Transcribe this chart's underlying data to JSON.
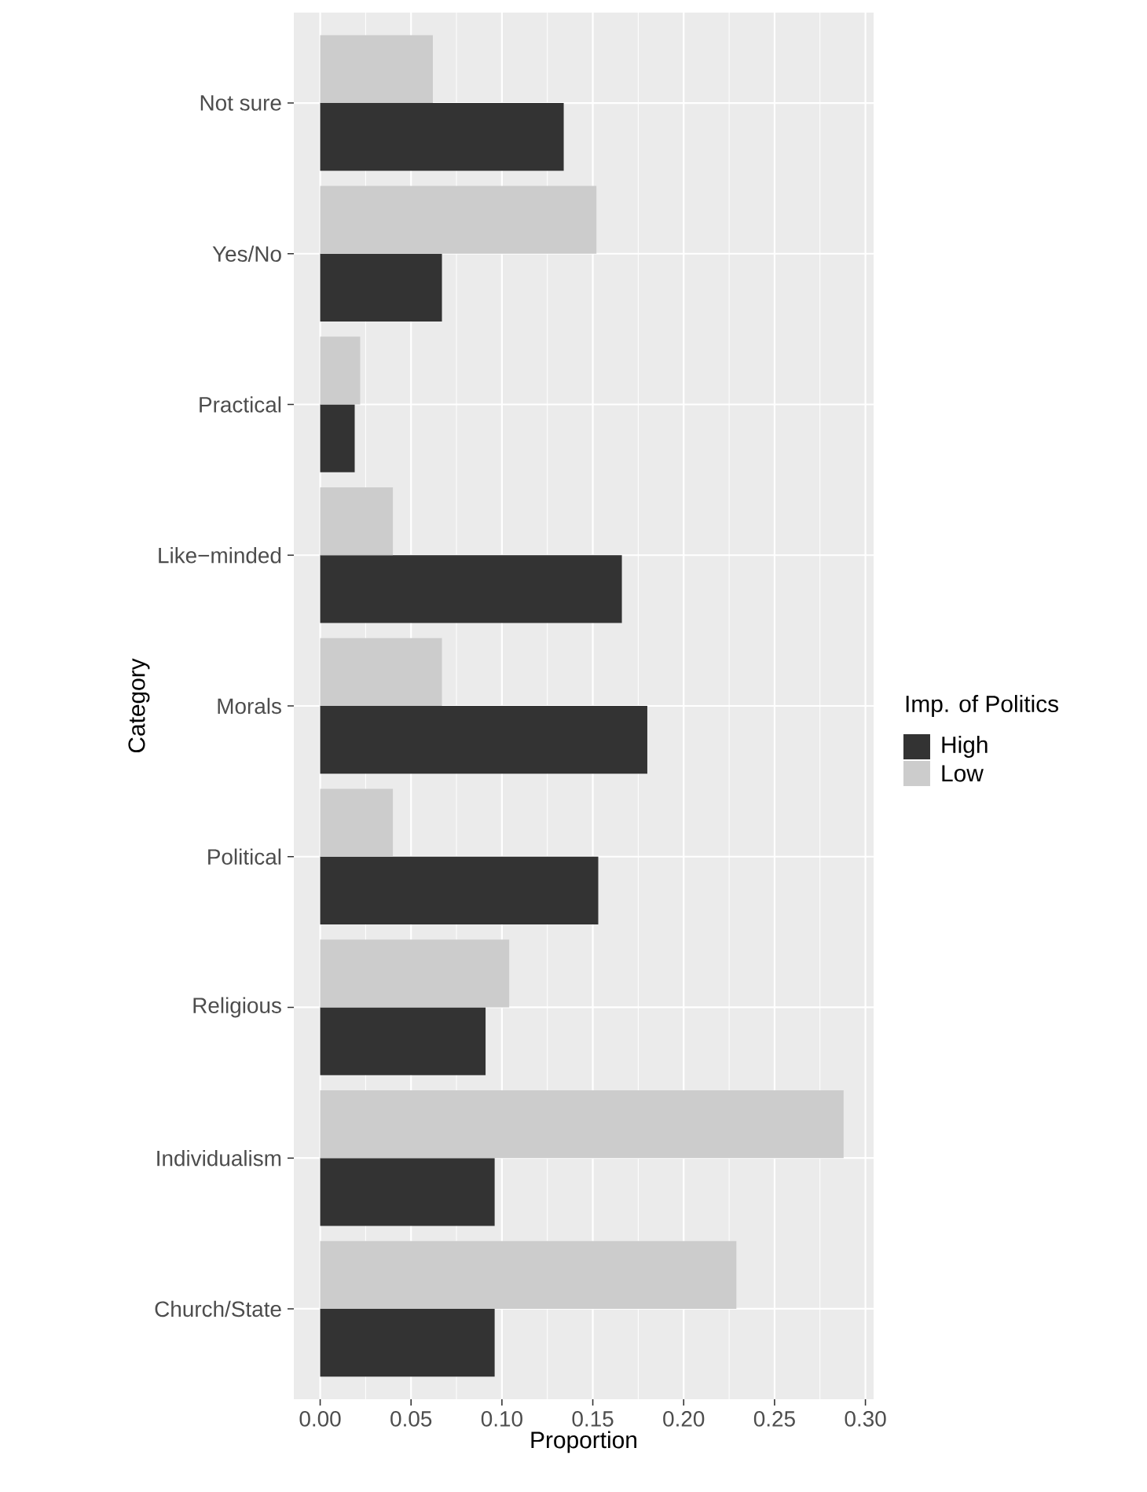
{
  "chart_data": {
    "type": "bar",
    "orientation": "horizontal",
    "xlabel": "Proportion",
    "ylabel": "Category",
    "legend_title": "Imp. of Politics",
    "categories": [
      "Not sure",
      "Yes/No",
      "Practical",
      "Like−minded",
      "Morals",
      "Political",
      "Religious",
      "Individualism",
      "Church/State"
    ],
    "series": [
      {
        "name": "High",
        "color": "#333333",
        "values": [
          0.134,
          0.067,
          0.019,
          0.166,
          0.18,
          0.153,
          0.091,
          0.096,
          0.096
        ]
      },
      {
        "name": "Low",
        "color": "#cccccc",
        "values": [
          0.062,
          0.152,
          0.022,
          0.04,
          0.067,
          0.04,
          0.104,
          0.288,
          0.229
        ]
      }
    ],
    "xlim": [
      -0.0145,
      0.3045
    ],
    "xticks": [
      {
        "value": 0,
        "label": "0.00"
      },
      {
        "value": 0.05,
        "label": "0.05"
      },
      {
        "value": 0.1,
        "label": "0.10"
      },
      {
        "value": 0.15,
        "label": "0.15"
      },
      {
        "value": 0.2,
        "label": "0.20"
      },
      {
        "value": 0.25,
        "label": "0.25"
      },
      {
        "value": 0.3,
        "label": "0.30"
      }
    ],
    "grid": true,
    "legend": "right"
  }
}
